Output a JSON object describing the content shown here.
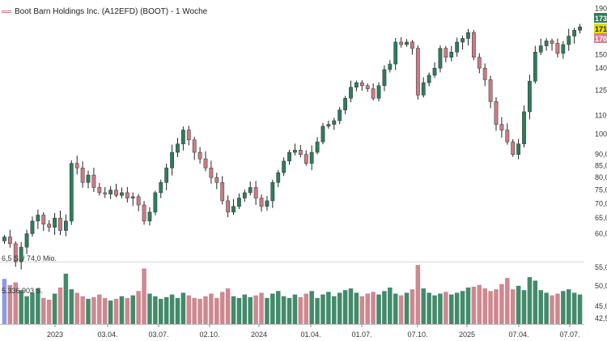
{
  "legend": {
    "name": "Boot Barn Holdings Inc. (A12EFD) (BOOT) - 1 Woche",
    "color_up": "#2e7d5b",
    "color_down": "#c97b84",
    "color_blue": "#7f8ee0"
  },
  "volume_labels": {
    "upper": "6,5 S. / 74,0 Mio.",
    "lower": "5.336.903 S."
  },
  "chart_data": {
    "type": "candlestick",
    "price_axis": {
      "ticks": [
        "190,00",
        "150,00",
        "140,00",
        "125,00",
        "110,00",
        "100,00",
        "90,00",
        "85,00",
        "80,00",
        "75,00",
        "70,00",
        "65,00",
        "60,00",
        "55,00",
        "50,00",
        "45,00",
        "42,50"
      ],
      "scale": "log"
    },
    "price_badges": [
      {
        "text": "173",
        "color": "#2e7d5b"
      },
      {
        "text": "171",
        "color": "#e5dd00"
      },
      {
        "text": "170",
        "color": "#d88090"
      }
    ],
    "x_ticks": [
      "2023",
      "03.04.",
      "03.07.",
      "02.10.",
      "2024",
      "01.04.",
      "01.07.",
      "07.10.",
      "2025",
      "07.04.",
      "07.07."
    ],
    "price_path": [
      59.0,
      57.0,
      52.0,
      56.0,
      60.0,
      64.0,
      66.0,
      63.0,
      62.0,
      65.0,
      61.0,
      64.0,
      86.0,
      84.0,
      78.0,
      81.0,
      76.0,
      74.0,
      73.5,
      75.0,
      73.0,
      74.0,
      72.0,
      72.5,
      69.5,
      64.0,
      67.0,
      74.0,
      78.0,
      84.0,
      91.0,
      95.0,
      102.0,
      97.0,
      91.0,
      88.0,
      84.0,
      80.0,
      78.0,
      71.0,
      67.0,
      69.0,
      72.0,
      74.0,
      76.0,
      72.0,
      69.0,
      71.0,
      78.0,
      82.0,
      87.0,
      91.0,
      92.0,
      90.0,
      86.0,
      91.0,
      96.0,
      104.0,
      105.0,
      107.0,
      113.0,
      120.0,
      127.0,
      130.0,
      128.0,
      126.0,
      120.0,
      128.0,
      139.0,
      143.0,
      160.0,
      158.0,
      160.0,
      155.0,
      122.0,
      130.0,
      135.0,
      140.0,
      155.0,
      148.0,
      152.0,
      160.0,
      163.0,
      168.0,
      148.0,
      140.0,
      132.0,
      118.0,
      105.0,
      102.0,
      96.0,
      90.0,
      95.0,
      112.0,
      131.0,
      152.0,
      157.0,
      161.0,
      159.0,
      151.0,
      158.0,
      165.0,
      170.0,
      173.0
    ],
    "volume_ticks": [
      "42,50"
    ],
    "volumes": [
      5.2,
      4.5,
      4.8,
      3.9,
      3.2,
      3.6,
      4.1,
      3.0,
      2.8,
      3.5,
      4.2,
      5.8,
      4.0,
      3.6,
      3.2,
      2.9,
      3.1,
      3.4,
      3.0,
      2.7,
      2.9,
      3.2,
      3.0,
      3.3,
      3.8,
      6.4,
      3.5,
      3.2,
      2.9,
      3.1,
      3.4,
      3.0,
      3.6,
      3.3,
      3.0,
      2.9,
      3.2,
      3.5,
      3.0,
      3.7,
      4.1,
      3.2,
      3.0,
      3.4,
      3.1,
      3.3,
      3.6,
      3.0,
      3.5,
      3.8,
      3.2,
      3.0,
      3.4,
      3.1,
      3.5,
      3.8,
      3.0,
      3.4,
      3.7,
      3.2,
      3.6,
      3.9,
      4.1,
      3.6,
      3.2,
      3.5,
      3.7,
      3.4,
      3.8,
      4.2,
      3.5,
      3.3,
      3.6,
      4.0,
      6.8,
      4.1,
      3.6,
      3.3,
      3.5,
      3.7,
      3.4,
      3.6,
      3.8,
      4.2,
      4.3,
      4.5,
      4.1,
      3.8,
      4.0,
      4.6,
      5.3,
      4.0,
      4.4,
      3.9,
      5.4,
      5.0,
      3.9,
      3.6,
      3.3,
      3.5,
      3.8,
      4.0,
      3.6,
      3.4
    ]
  }
}
